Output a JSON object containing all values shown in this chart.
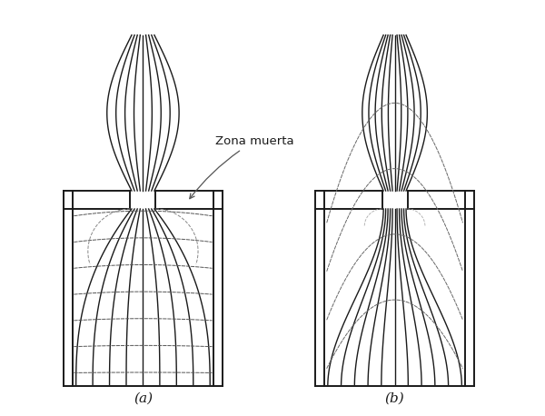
{
  "background_color": "#ffffff",
  "line_color": "#1a1a1a",
  "label_a": "(a)",
  "label_b": "(b)",
  "annotation": "Zona muerta",
  "fig_width": 6.0,
  "fig_height": 4.58,
  "dpi": 100
}
